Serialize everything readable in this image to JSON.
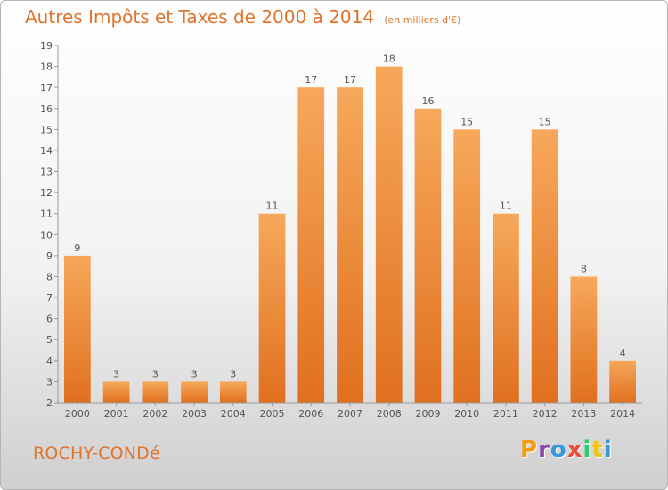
{
  "header": {
    "title": "Autres Impôts et Taxes de 2000 à 2014",
    "unit": "(en milliers d'€)"
  },
  "footer": {
    "place": "ROCHY-CONDé",
    "brand": "Proxiti",
    "brand_colors": [
      "#f39c12",
      "#8e44ad",
      "#3498db",
      "#e74c3c",
      "#2ecc71",
      "#f1c40f",
      "#3498db"
    ]
  },
  "chart_data": {
    "type": "bar",
    "title": "Autres Impôts et Taxes de 2000 à 2014",
    "categories": [
      "2000",
      "2001",
      "2002",
      "2003",
      "2004",
      "2005",
      "2006",
      "2007",
      "2008",
      "2009",
      "2010",
      "2011",
      "2012",
      "2013",
      "2014"
    ],
    "values": [
      9,
      3,
      3,
      3,
      3,
      11,
      17,
      17,
      18,
      16,
      15,
      11,
      15,
      8,
      4
    ],
    "data_labels": [
      "9",
      "3",
      "3",
      "3",
      "3",
      "11",
      "17",
      "17",
      "18",
      "16",
      "15",
      "11",
      "15",
      "8",
      "4"
    ],
    "y_ticks": [
      2,
      3,
      4,
      5,
      6,
      7,
      8,
      9,
      10,
      11,
      12,
      13,
      14,
      15,
      16,
      17,
      18,
      19
    ],
    "ylim": [
      2,
      19
    ],
    "grid": false,
    "colors": {
      "bar_light": "#f7a85a",
      "bar_dark": "#e07020",
      "axis": "#999999",
      "text": "#555555"
    }
  }
}
